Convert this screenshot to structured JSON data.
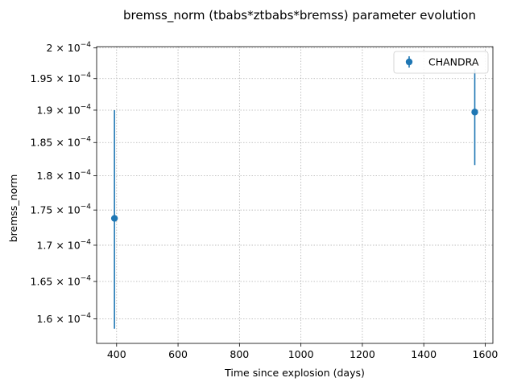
{
  "chart_data": {
    "type": "scatter",
    "title": "bremss_norm (tbabs*ztbabs*bremss) parameter evolution",
    "xlabel": "Time since explosion (days)",
    "ylabel": "bremss_norm",
    "xlim": [
      335,
      1625
    ],
    "ylim": [
      0.0001568,
      0.0002002
    ],
    "y_scale": "log",
    "grid": true,
    "legend_position": "top-right",
    "x_ticks": [
      {
        "value": 400,
        "label": "400"
      },
      {
        "value": 600,
        "label": "600"
      },
      {
        "value": 800,
        "label": "800"
      },
      {
        "value": 1000,
        "label": "1000"
      },
      {
        "value": 1200,
        "label": "1200"
      },
      {
        "value": 1400,
        "label": "1400"
      },
      {
        "value": 1600,
        "label": "1600"
      }
    ],
    "y_ticks": [
      {
        "value": 0.00016,
        "mant": "1.6",
        "exp": "−4"
      },
      {
        "value": 0.000165,
        "mant": "1.65",
        "exp": "−4"
      },
      {
        "value": 0.00017,
        "mant": "1.7",
        "exp": "−4"
      },
      {
        "value": 0.000175,
        "mant": "1.75",
        "exp": "−4"
      },
      {
        "value": 0.00018,
        "mant": "1.8",
        "exp": "−4"
      },
      {
        "value": 0.000185,
        "mant": "1.85",
        "exp": "−4"
      },
      {
        "value": 0.00019,
        "mant": "1.9",
        "exp": "−4"
      },
      {
        "value": 0.000195,
        "mant": "1.95",
        "exp": "−4"
      },
      {
        "value": 0.0002,
        "mant": "2",
        "exp": "−4"
      }
    ],
    "series": [
      {
        "name": "CHANDRA",
        "color": "#1f77b4",
        "points": [
          {
            "x": 393,
            "y": 0.0001738,
            "y_low": 0.0001587,
            "y_high": 0.00019
          },
          {
            "x": 1566,
            "y": 0.0001897,
            "y_low": 0.0001816,
            "y_high": 0.0001965
          }
        ]
      }
    ]
  }
}
